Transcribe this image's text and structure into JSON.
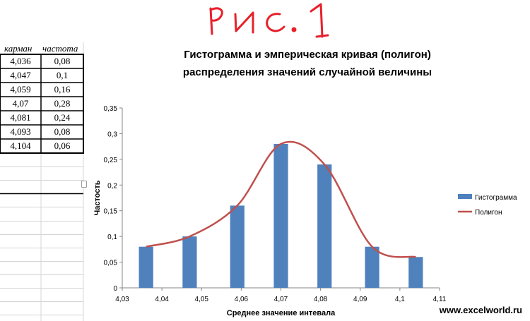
{
  "sheet": {
    "headers": [
      "карман",
      "частота"
    ],
    "rows": [
      [
        "4,036",
        "0,08"
      ],
      [
        "4,047",
        "0,1"
      ],
      [
        "4,059",
        "0,16"
      ],
      [
        "4,07",
        "0,28"
      ],
      [
        "4,081",
        "0,24"
      ],
      [
        "4,093",
        "0,08"
      ],
      [
        "4,104",
        "0,06"
      ]
    ]
  },
  "annotation": "РИС. 1",
  "watermark": "www.excelworld.ru",
  "colors": {
    "bars": "#4f81bd",
    "line": "#c0504d",
    "axis": "#868686"
  },
  "chart_data": {
    "type": "bar",
    "title": "Гистограмма и эмперическая кривая (полигон) распределения значений случайной величины",
    "title_lines": [
      "Гистограмма и эмперическая кривая (полигон)",
      "распределения значений случайной величины"
    ],
    "xlabel": "Среднее значение интевала",
    "ylabel": "Частость",
    "xlim": [
      4.03,
      4.11
    ],
    "ylim": [
      0,
      0.35
    ],
    "x_ticks": [
      "4,03",
      "4,04",
      "4,05",
      "4,06",
      "4,07",
      "4,08",
      "4,09",
      "4,1",
      "4,11"
    ],
    "y_ticks": [
      "0",
      "0,05",
      "0,1",
      "0,15",
      "0,2",
      "0,25",
      "0,3",
      "0,35"
    ],
    "grid": false,
    "legend_position": "right",
    "series": [
      {
        "name": "Гистограмма",
        "kind": "bar",
        "x": [
          4.036,
          4.047,
          4.059,
          4.07,
          4.081,
          4.093,
          4.104
        ],
        "values": [
          0.08,
          0.1,
          0.16,
          0.28,
          0.24,
          0.08,
          0.06
        ]
      },
      {
        "name": "Полигон",
        "kind": "smooth-line",
        "x": [
          4.036,
          4.047,
          4.059,
          4.07,
          4.081,
          4.093,
          4.104
        ],
        "values": [
          0.08,
          0.1,
          0.16,
          0.28,
          0.24,
          0.08,
          0.06
        ]
      }
    ]
  }
}
